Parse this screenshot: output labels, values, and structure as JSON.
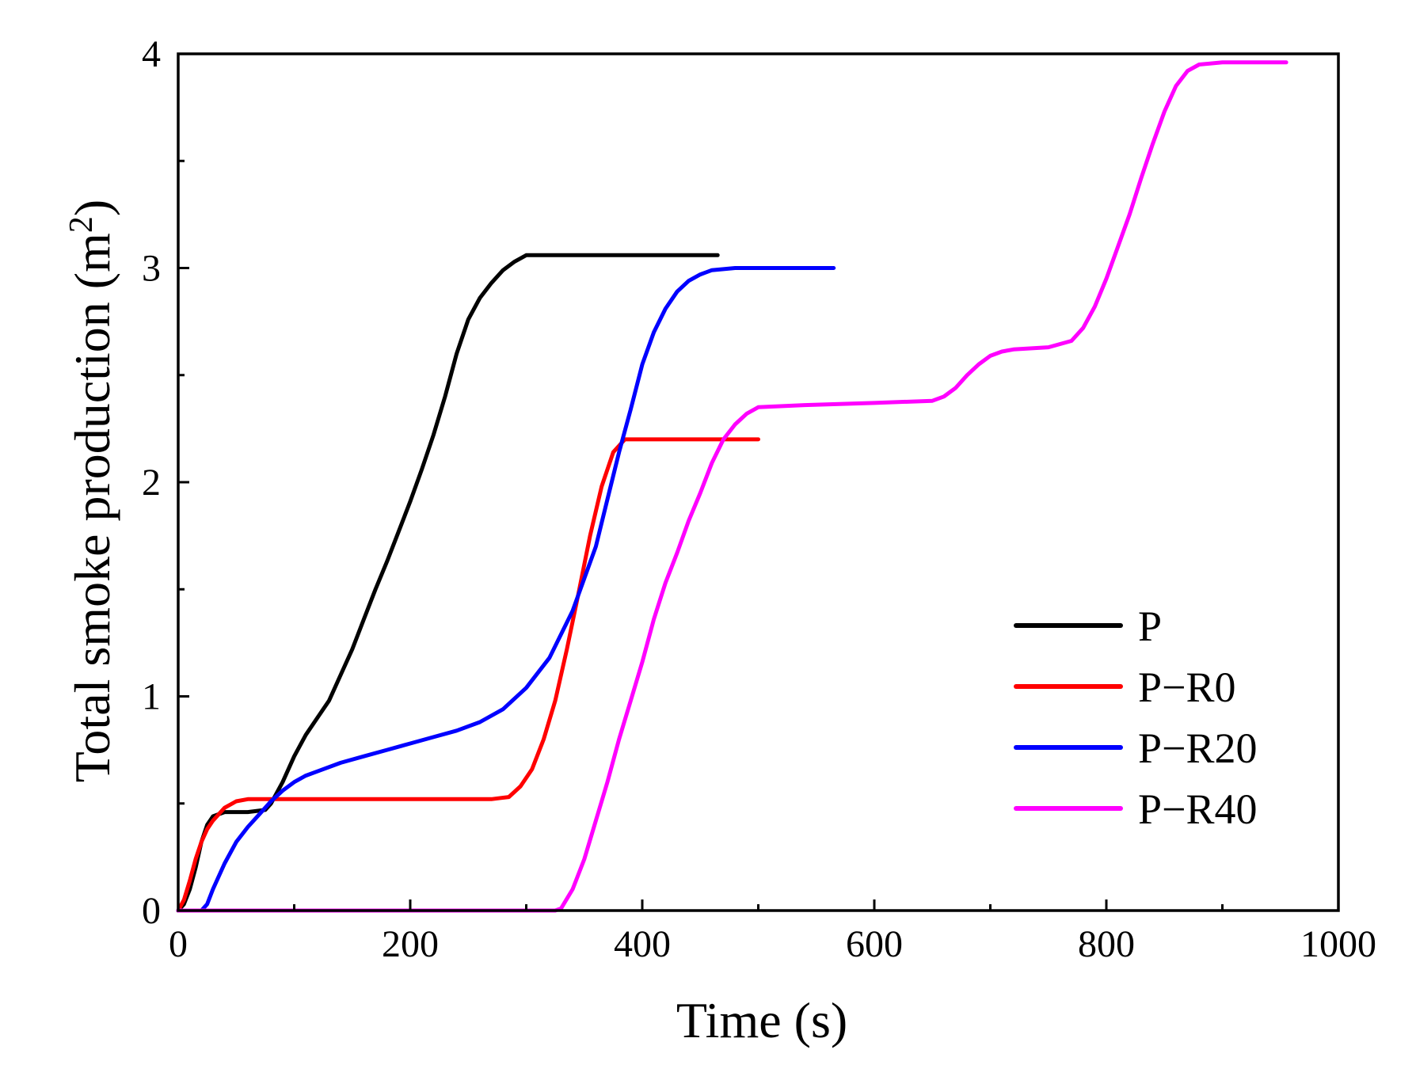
{
  "chart_data": {
    "type": "line",
    "title": "",
    "xlabel": "Time (s)",
    "ylabel_main": "Total smoke production (m",
    "ylabel_sup": "2",
    "ylabel_close": ")",
    "xlim": [
      0,
      1000
    ],
    "ylim": [
      0,
      4
    ],
    "xticks": [
      0,
      200,
      400,
      600,
      800,
      1000
    ],
    "xtick_labels": [
      "0",
      "200",
      "400",
      "600",
      "800",
      "1000"
    ],
    "yticks": [
      0,
      1,
      2,
      3,
      4
    ],
    "ytick_labels": [
      "0",
      "1",
      "2",
      "3",
      "4"
    ],
    "x_minor_step": 100,
    "y_minor_step": 0.5,
    "grid": false,
    "legend_position": "bottom-right",
    "series": [
      {
        "name": "P",
        "color": "#000000",
        "points": [
          [
            0,
            0
          ],
          [
            5,
            0.03
          ],
          [
            10,
            0.1
          ],
          [
            15,
            0.2
          ],
          [
            20,
            0.32
          ],
          [
            25,
            0.4
          ],
          [
            30,
            0.44
          ],
          [
            40,
            0.46
          ],
          [
            60,
            0.46
          ],
          [
            75,
            0.47
          ],
          [
            80,
            0.5
          ],
          [
            90,
            0.6
          ],
          [
            100,
            0.72
          ],
          [
            110,
            0.82
          ],
          [
            120,
            0.9
          ],
          [
            130,
            0.98
          ],
          [
            140,
            1.1
          ],
          [
            150,
            1.22
          ],
          [
            160,
            1.36
          ],
          [
            170,
            1.5
          ],
          [
            180,
            1.63
          ],
          [
            190,
            1.77
          ],
          [
            200,
            1.91
          ],
          [
            210,
            2.06
          ],
          [
            220,
            2.22
          ],
          [
            230,
            2.4
          ],
          [
            240,
            2.6
          ],
          [
            250,
            2.76
          ],
          [
            260,
            2.86
          ],
          [
            270,
            2.93
          ],
          [
            280,
            2.99
          ],
          [
            290,
            3.03
          ],
          [
            300,
            3.06
          ],
          [
            310,
            3.06
          ],
          [
            400,
            3.06
          ],
          [
            465,
            3.06
          ]
        ]
      },
      {
        "name": "P−R0",
        "color": "#ff0000",
        "points": [
          [
            0,
            0
          ],
          [
            5,
            0.05
          ],
          [
            10,
            0.14
          ],
          [
            15,
            0.24
          ],
          [
            20,
            0.32
          ],
          [
            25,
            0.38
          ],
          [
            30,
            0.42
          ],
          [
            40,
            0.48
          ],
          [
            50,
            0.51
          ],
          [
            60,
            0.52
          ],
          [
            100,
            0.52
          ],
          [
            200,
            0.52
          ],
          [
            270,
            0.52
          ],
          [
            285,
            0.53
          ],
          [
            295,
            0.58
          ],
          [
            305,
            0.66
          ],
          [
            315,
            0.8
          ],
          [
            325,
            0.98
          ],
          [
            335,
            1.22
          ],
          [
            345,
            1.48
          ],
          [
            355,
            1.75
          ],
          [
            365,
            1.98
          ],
          [
            375,
            2.14
          ],
          [
            385,
            2.2
          ],
          [
            400,
            2.2
          ],
          [
            500,
            2.2
          ]
        ]
      },
      {
        "name": "P−R20",
        "color": "#0000ff",
        "points": [
          [
            0,
            0
          ],
          [
            20,
            0
          ],
          [
            25,
            0.03
          ],
          [
            30,
            0.1
          ],
          [
            40,
            0.22
          ],
          [
            50,
            0.32
          ],
          [
            60,
            0.39
          ],
          [
            70,
            0.45
          ],
          [
            80,
            0.51
          ],
          [
            90,
            0.56
          ],
          [
            100,
            0.6
          ],
          [
            110,
            0.63
          ],
          [
            120,
            0.65
          ],
          [
            140,
            0.69
          ],
          [
            160,
            0.72
          ],
          [
            180,
            0.75
          ],
          [
            200,
            0.78
          ],
          [
            220,
            0.81
          ],
          [
            240,
            0.84
          ],
          [
            260,
            0.88
          ],
          [
            280,
            0.94
          ],
          [
            300,
            1.04
          ],
          [
            320,
            1.18
          ],
          [
            340,
            1.4
          ],
          [
            360,
            1.7
          ],
          [
            370,
            1.92
          ],
          [
            380,
            2.14
          ],
          [
            390,
            2.34
          ],
          [
            400,
            2.55
          ],
          [
            410,
            2.7
          ],
          [
            420,
            2.81
          ],
          [
            430,
            2.89
          ],
          [
            440,
            2.94
          ],
          [
            450,
            2.97
          ],
          [
            460,
            2.99
          ],
          [
            480,
            3.0
          ],
          [
            565,
            3.0
          ]
        ]
      },
      {
        "name": "P−R40",
        "color": "#ff00ff",
        "points": [
          [
            0,
            0
          ],
          [
            325,
            0
          ],
          [
            330,
            0.01
          ],
          [
            340,
            0.1
          ],
          [
            350,
            0.24
          ],
          [
            360,
            0.42
          ],
          [
            370,
            0.6
          ],
          [
            380,
            0.8
          ],
          [
            390,
            0.98
          ],
          [
            400,
            1.16
          ],
          [
            410,
            1.36
          ],
          [
            420,
            1.53
          ],
          [
            430,
            1.67
          ],
          [
            440,
            1.82
          ],
          [
            450,
            1.95
          ],
          [
            460,
            2.09
          ],
          [
            470,
            2.2
          ],
          [
            480,
            2.27
          ],
          [
            490,
            2.32
          ],
          [
            500,
            2.35
          ],
          [
            540,
            2.36
          ],
          [
            600,
            2.37
          ],
          [
            650,
            2.38
          ],
          [
            660,
            2.4
          ],
          [
            670,
            2.44
          ],
          [
            680,
            2.5
          ],
          [
            690,
            2.55
          ],
          [
            700,
            2.59
          ],
          [
            710,
            2.61
          ],
          [
            720,
            2.62
          ],
          [
            750,
            2.63
          ],
          [
            770,
            2.66
          ],
          [
            780,
            2.72
          ],
          [
            790,
            2.82
          ],
          [
            800,
            2.95
          ],
          [
            810,
            3.1
          ],
          [
            820,
            3.25
          ],
          [
            830,
            3.42
          ],
          [
            840,
            3.58
          ],
          [
            850,
            3.73
          ],
          [
            860,
            3.85
          ],
          [
            870,
            3.92
          ],
          [
            880,
            3.95
          ],
          [
            900,
            3.96
          ],
          [
            955,
            3.96
          ]
        ]
      }
    ]
  }
}
